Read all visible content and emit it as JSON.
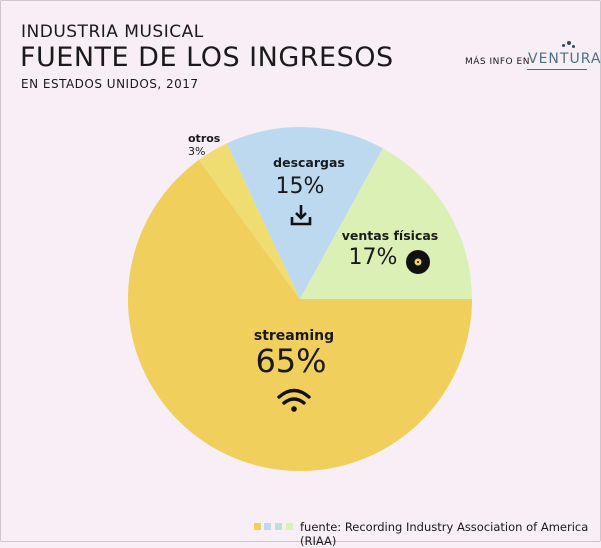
{
  "header": {
    "kicker": "INDUSTRIA MUSICAL",
    "title": "FUENTE DE LOS INGRESOS",
    "subtitle": "EN ESTADOS UNIDOS, 2017",
    "more_info": "MÁS INFO EN",
    "brand": "VENTURA"
  },
  "source": "fuente: Recording Industry Association of America (RIAA)",
  "chart_data": {
    "type": "pie",
    "slices": [
      {
        "label": "streaming",
        "value": 65,
        "value_label": "65%",
        "color": "#f0cf5c",
        "icon": "wifi-icon"
      },
      {
        "label": "otros",
        "value": 3,
        "value_label": "3%",
        "color": "#efdd72",
        "icon": ""
      },
      {
        "label": "descargas",
        "value": 15,
        "value_label": "15%",
        "color": "#bcd9ef",
        "icon": "download-icon"
      },
      {
        "label": "ventas físicas",
        "value": 17,
        "value_label": "17%",
        "color": "#daf0b5",
        "icon": "vinyl-record-icon"
      }
    ]
  }
}
